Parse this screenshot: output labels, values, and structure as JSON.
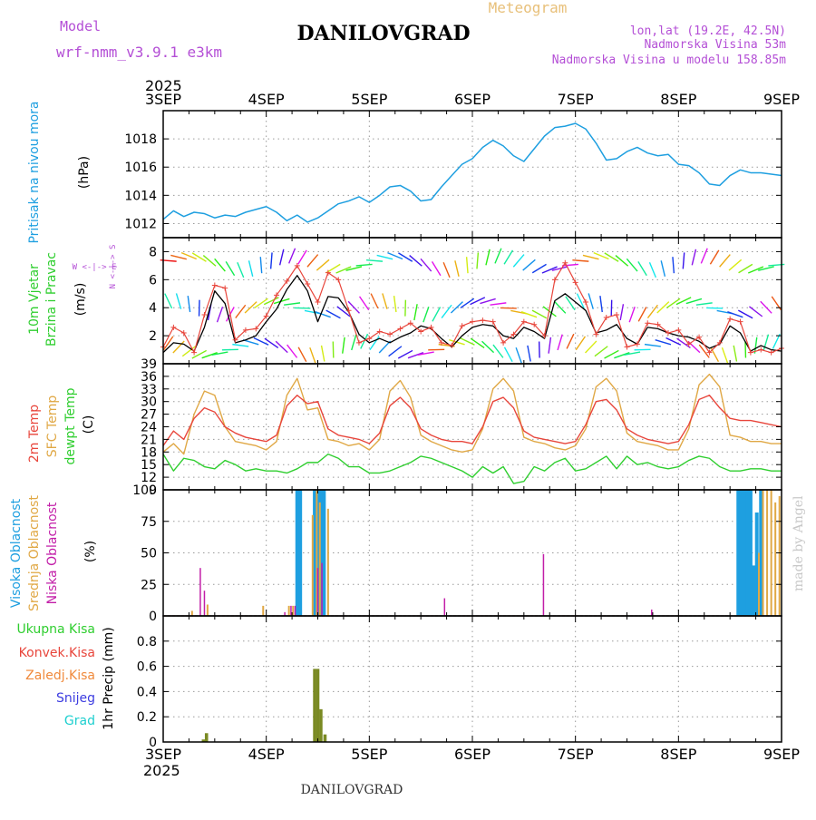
{
  "header": {
    "title": "DANILOVGRAD",
    "subtitle": "Meteogram",
    "model_label": "Model",
    "model_name": "wrf-nmm_v3.9.1  e3km",
    "lonlat": "lon,lat (19.2E, 42.5N)",
    "elevation": "Nadmorska Visina 53m",
    "model_elevation": "Nadmorska Visina u modelu 158.85m",
    "year": "2025",
    "footer_title": "DANILOVGRAD",
    "watermark": "made by Angel"
  },
  "colors": {
    "pressure": "#1e9fe0",
    "wind_speed": "#000000",
    "gust": "#e8463c",
    "temp2m": "#e8463c",
    "sfc_temp": "#e0a845",
    "dewpt": "#2fce2f",
    "high_cloud": "#1e9fe0",
    "mid_cloud": "#e0a845",
    "low_cloud": "#c21ea8",
    "precip_total": "#7a8a23",
    "label_green": "#2fce2f",
    "label_red": "#e8463c",
    "label_orange": "#f08a3c",
    "label_blue": "#3c3ce0",
    "label_cyan": "#1ecfcf",
    "label_purple": "#b44fd6"
  },
  "chart_data": [
    {
      "type": "line",
      "title": "Pritisak na nivou mora",
      "ylabel": "(hPa)",
      "ylim": [
        1011,
        1020
      ],
      "yticks": [
        1012,
        1014,
        1016,
        1018
      ],
      "xticks": [
        "3SEP",
        "4SEP",
        "5SEP",
        "6SEP",
        "7SEP",
        "8SEP",
        "9SEP"
      ],
      "x_days": [
        0,
        0.1,
        0.2,
        0.3,
        0.4,
        0.5,
        0.6,
        0.7,
        0.8,
        0.9,
        1.0,
        1.1,
        1.2,
        1.3,
        1.4,
        1.5,
        1.6,
        1.7,
        1.8,
        1.9,
        2.0,
        2.1,
        2.2,
        2.3,
        2.4,
        2.5,
        2.6,
        2.7,
        2.8,
        2.9,
        3.0,
        3.1,
        3.2,
        3.3,
        3.4,
        3.5,
        3.6,
        3.7,
        3.8,
        3.9,
        4.0,
        4.1,
        4.2,
        4.3,
        4.4,
        4.5,
        4.6,
        4.7,
        4.8,
        4.9,
        5.0,
        5.1,
        5.2,
        5.3,
        5.4,
        5.5,
        5.6,
        5.7,
        5.8,
        5.9,
        6.0
      ],
      "series": [
        {
          "name": "MSLP",
          "values": [
            1012.3,
            1012.9,
            1012.5,
            1012.8,
            1012.7,
            1012.4,
            1012.6,
            1012.5,
            1012.8,
            1013.0,
            1013.2,
            1012.8,
            1012.2,
            1012.6,
            1012.1,
            1012.4,
            1012.9,
            1013.4,
            1013.6,
            1013.9,
            1013.5,
            1014.0,
            1014.6,
            1014.7,
            1014.3,
            1013.6,
            1013.7,
            1014.6,
            1015.4,
            1016.2,
            1016.6,
            1017.4,
            1017.9,
            1017.5,
            1016.8,
            1016.4,
            1017.3,
            1018.2,
            1018.8,
            1018.9,
            1019.1,
            1018.7,
            1017.7,
            1016.5,
            1016.6,
            1017.1,
            1017.4,
            1017.0,
            1016.8,
            1016.9,
            1016.2,
            1016.1,
            1015.6,
            1014.8,
            1014.7,
            1015.4,
            1015.8,
            1015.6,
            1015.6,
            1015.5,
            1015.4
          ]
        }
      ]
    },
    {
      "type": "line",
      "title": "10m Vjetar Brzina i Pravac",
      "ylabel": "(m/s)",
      "direction_legend": "W <-|-> E",
      "north_south_legend": "N <-|-> S",
      "ylim": [
        0,
        9
      ],
      "yticks": [
        2,
        4,
        6,
        8
      ],
      "xticks": [
        "3SEP",
        "4SEP",
        "5SEP",
        "6SEP",
        "7SEP",
        "8SEP",
        "9SEP"
      ],
      "x_days": [
        0,
        0.1,
        0.2,
        0.3,
        0.4,
        0.5,
        0.6,
        0.7,
        0.8,
        0.9,
        1.0,
        1.1,
        1.2,
        1.3,
        1.4,
        1.5,
        1.6,
        1.7,
        1.8,
        1.9,
        2.0,
        2.1,
        2.2,
        2.3,
        2.4,
        2.5,
        2.6,
        2.7,
        2.8,
        2.9,
        3.0,
        3.1,
        3.2,
        3.3,
        3.4,
        3.5,
        3.6,
        3.7,
        3.8,
        3.9,
        4.0,
        4.1,
        4.2,
        4.3,
        4.4,
        4.5,
        4.6,
        4.7,
        4.8,
        4.9,
        5.0,
        5.1,
        5.2,
        5.3,
        5.4,
        5.5,
        5.6,
        5.7,
        5.8,
        5.9,
        6.0
      ],
      "series": [
        {
          "name": "Wind speed",
          "values": [
            0.8,
            1.5,
            1.4,
            0.9,
            2.6,
            5.2,
            4.3,
            1.5,
            1.7,
            2.0,
            3.0,
            3.9,
            5.3,
            6.3,
            5.2,
            3.0,
            4.8,
            4.7,
            3.7,
            2.1,
            1.5,
            1.8,
            1.5,
            1.9,
            2.2,
            2.7,
            2.5,
            1.8,
            1.2,
            2.0,
            2.6,
            2.8,
            2.7,
            2.0,
            1.8,
            2.6,
            2.3,
            1.8,
            4.5,
            5.0,
            4.4,
            3.8,
            2.2,
            2.4,
            2.8,
            1.8,
            1.4,
            2.6,
            2.5,
            2.2,
            2.0,
            1.9,
            1.6,
            1.1,
            1.4,
            2.7,
            2.2,
            0.9,
            1.3,
            1.0,
            0.9
          ]
        },
        {
          "name": "Gusts",
          "values": [
            1.2,
            2.6,
            2.2,
            0.8,
            3.5,
            5.6,
            5.4,
            1.7,
            2.4,
            2.5,
            3.4,
            4.9,
            5.9,
            7.0,
            5.7,
            4.4,
            6.5,
            6.0,
            3.8,
            1.5,
            1.8,
            2.3,
            2.1,
            2.5,
            2.9,
            2.3,
            2.6,
            1.5,
            1.3,
            2.7,
            3.0,
            3.1,
            3.0,
            1.5,
            2.1,
            3.0,
            2.8,
            2.0,
            6.0,
            7.2,
            5.8,
            4.4,
            2.1,
            3.3,
            3.5,
            1.2,
            1.4,
            2.9,
            2.8,
            2.2,
            2.4,
            1.4,
            1.9,
            0.8,
            1.5,
            3.2,
            3.0,
            0.8,
            1.0,
            0.8,
            1.1
          ]
        }
      ]
    },
    {
      "type": "line",
      "title": "2m Temp / SFC Temp / dewpt Temp",
      "ylabel": "(C)",
      "ylim": [
        9,
        39
      ],
      "yticks": [
        9,
        12,
        15,
        18,
        21,
        24,
        27,
        30,
        33,
        36,
        39
      ],
      "xticks": [
        "3SEP",
        "4SEP",
        "5SEP",
        "6SEP",
        "7SEP",
        "8SEP",
        "9SEP"
      ],
      "x_days": [
        0,
        0.1,
        0.2,
        0.3,
        0.4,
        0.5,
        0.6,
        0.7,
        0.8,
        0.9,
        1.0,
        1.1,
        1.2,
        1.3,
        1.4,
        1.5,
        1.6,
        1.7,
        1.8,
        1.9,
        2.0,
        2.1,
        2.2,
        2.3,
        2.4,
        2.5,
        2.6,
        2.7,
        2.8,
        2.9,
        3.0,
        3.1,
        3.2,
        3.3,
        3.4,
        3.5,
        3.6,
        3.7,
        3.8,
        3.9,
        4.0,
        4.1,
        4.2,
        4.3,
        4.4,
        4.5,
        4.6,
        4.7,
        4.8,
        4.9,
        5.0,
        5.1,
        5.2,
        5.3,
        5.4,
        5.5,
        5.6,
        5.7,
        5.8,
        5.9,
        6.0
      ],
      "series": [
        {
          "name": "2m Temp",
          "values": [
            19.5,
            23.0,
            21.0,
            26.0,
            28.5,
            27.5,
            24.0,
            22.5,
            21.5,
            21.0,
            20.5,
            22.0,
            29.0,
            31.5,
            29.5,
            30.0,
            23.5,
            22.0,
            21.5,
            21.0,
            20.0,
            22.5,
            29.0,
            31.0,
            28.5,
            23.5,
            22.0,
            21.0,
            20.5,
            20.5,
            20.0,
            24.0,
            30.0,
            31.0,
            28.5,
            23.0,
            21.5,
            21.0,
            20.5,
            20.0,
            20.5,
            24.5,
            30.0,
            30.5,
            28.0,
            23.5,
            22.0,
            21.0,
            20.5,
            20.0,
            20.5,
            24.5,
            30.5,
            31.5,
            28.5,
            26.0,
            25.5,
            25.5,
            25.0,
            24.5,
            24.0
          ]
        },
        {
          "name": "SFC Temp",
          "values": [
            18.0,
            20.0,
            17.5,
            27.0,
            32.5,
            31.5,
            24.0,
            20.5,
            20.0,
            19.5,
            18.5,
            20.5,
            31.5,
            35.5,
            28.0,
            28.5,
            21.0,
            20.5,
            19.5,
            20.0,
            18.5,
            21.0,
            32.5,
            35.0,
            31.0,
            22.0,
            20.5,
            19.5,
            18.5,
            18.0,
            18.5,
            23.5,
            33.0,
            35.5,
            32.5,
            21.5,
            20.5,
            20.0,
            19.0,
            18.5,
            19.5,
            23.5,
            33.5,
            35.5,
            32.5,
            22.5,
            20.5,
            20.0,
            19.5,
            18.5,
            18.5,
            23.5,
            34.0,
            36.5,
            33.5,
            22.0,
            21.5,
            20.5,
            20.5,
            20.0,
            20.0
          ]
        },
        {
          "name": "dewpt Temp",
          "values": [
            17.5,
            13.5,
            16.5,
            16.0,
            14.5,
            14.0,
            16.0,
            15.0,
            13.5,
            14.0,
            13.5,
            13.5,
            13.0,
            14.0,
            15.5,
            15.5,
            17.5,
            16.5,
            14.5,
            14.5,
            13.0,
            13.0,
            13.5,
            14.5,
            15.5,
            17.0,
            16.5,
            15.5,
            14.5,
            13.5,
            12.0,
            14.5,
            13.0,
            14.5,
            10.5,
            11.0,
            14.5,
            13.5,
            15.5,
            16.5,
            13.5,
            14.0,
            15.5,
            17.0,
            14.0,
            17.0,
            15.0,
            15.5,
            14.5,
            14.0,
            14.5,
            16.0,
            17.0,
            16.5,
            14.5,
            13.5,
            13.5,
            14.0,
            14.0,
            13.5,
            13.5
          ]
        }
      ]
    },
    {
      "type": "bar",
      "title": "Visoka / Srednja / Niska Oblacnost",
      "ylabel": "(%)",
      "ylim": [
        0,
        100
      ],
      "yticks": [
        0,
        25,
        50,
        75,
        100
      ],
      "xticks": [
        "3SEP",
        "4SEP",
        "5SEP",
        "6SEP",
        "7SEP",
        "8SEP",
        "9SEP"
      ],
      "series": [
        {
          "name": "Visoka Oblacnost",
          "x_days": [
            1.3,
            1.32,
            1.33,
            1.47,
            1.5,
            1.53,
            1.56,
            5.58,
            5.61,
            5.64,
            5.67,
            5.7,
            5.73,
            5.76,
            5.8
          ],
          "values": [
            100,
            100,
            100,
            100,
            100,
            100,
            100,
            100,
            100,
            100,
            100,
            100,
            40,
            82,
            100
          ]
        },
        {
          "name": "Srednja Oblacnost",
          "x_days": [
            0.28,
            0.43,
            0.97,
            1.22,
            1.26,
            1.45,
            1.49,
            1.52,
            1.6,
            5.78,
            5.82,
            5.86,
            5.9,
            5.94,
            5.98
          ],
          "values": [
            4,
            9,
            8,
            8,
            8,
            80,
            100,
            90,
            85,
            50,
            100,
            100,
            100,
            90,
            95
          ]
        },
        {
          "name": "Niska Oblacnost",
          "x_days": [
            0.36,
            0.4,
            1.18,
            1.24,
            1.28,
            1.5,
            1.54,
            2.73,
            3.69,
            4.74
          ],
          "values": [
            38,
            20,
            3,
            8,
            8,
            38,
            42,
            14,
            49,
            5
          ]
        }
      ]
    },
    {
      "type": "bar",
      "title": "1hr Precip",
      "ylabel": "1hr Precip (mm)",
      "ylim": [
        0,
        1
      ],
      "yticks": [
        0,
        0.2,
        0.4,
        0.6,
        0.8
      ],
      "xticks": [
        "3SEP",
        "4SEP",
        "5SEP",
        "6SEP",
        "7SEP",
        "8SEP",
        "9SEP"
      ],
      "legend": [
        "Ukupna Kisa",
        "Konvek.Kisa",
        "Zaledj.Kisa",
        "Snijeg",
        "Grad"
      ],
      "series": [
        {
          "name": "Ukupna Kisa",
          "x_days": [
            0.39,
            0.42,
            1.47,
            1.5,
            1.53,
            1.57
          ],
          "values": [
            0.02,
            0.07,
            0.58,
            0.58,
            0.26,
            0.06
          ]
        }
      ]
    }
  ]
}
